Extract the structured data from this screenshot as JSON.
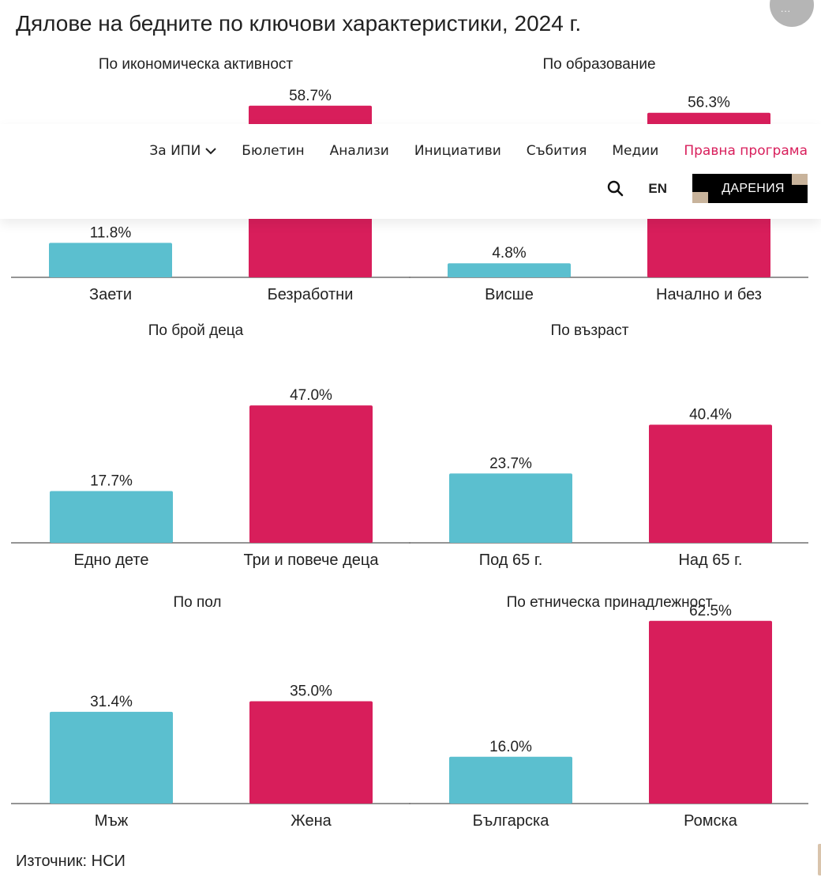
{
  "title": "Дялове на бедните по ключови характеристики, 2024 г.",
  "corner_badge": "...",
  "source": "Източник: НСИ",
  "colors": {
    "low": "#5bbfcf",
    "high": "#d81e5b",
    "accent": "#d81e5b",
    "axis": "#555555"
  },
  "chart_data": [
    {
      "type": "bar",
      "title": "По икономическа активност",
      "categories": [
        "Заети",
        "Безработни"
      ],
      "values": [
        11.8,
        58.7
      ],
      "labels": [
        "11.8%",
        "58.7%"
      ],
      "ylim": [
        0,
        65
      ]
    },
    {
      "type": "bar",
      "title": "По образование",
      "categories": [
        "Висше",
        "Начално и без"
      ],
      "values": [
        4.8,
        56.3
      ],
      "labels": [
        "4.8%",
        "56.3%"
      ],
      "ylim": [
        0,
        65
      ]
    },
    {
      "type": "bar",
      "title": "По брой деца",
      "categories": [
        "Едно дете",
        "Три и повече деца"
      ],
      "values": [
        17.7,
        47.0
      ],
      "labels": [
        "17.7%",
        "47.0%"
      ],
      "ylim": [
        0,
        65
      ]
    },
    {
      "type": "bar",
      "title": "По възраст",
      "categories": [
        "Под 65 г.",
        "Над 65 г."
      ],
      "values": [
        23.7,
        40.4
      ],
      "labels": [
        "23.7%",
        "40.4%"
      ],
      "ylim": [
        0,
        65
      ]
    },
    {
      "type": "bar",
      "title": "По пол",
      "categories": [
        "Мъж",
        "Жена"
      ],
      "values": [
        31.4,
        35.0
      ],
      "labels": [
        "31.4%",
        "35.0%"
      ],
      "ylim": [
        0,
        65
      ]
    },
    {
      "type": "bar",
      "title": "По етническа принадлежност",
      "categories": [
        "Българска",
        "Ромска"
      ],
      "values": [
        16.0,
        62.5
      ],
      "labels": [
        "16.0%",
        "62.5%"
      ],
      "ylim": [
        0,
        65
      ]
    }
  ],
  "nav": {
    "items": [
      {
        "label": "За ИПИ",
        "dropdown": true
      },
      {
        "label": "Бюлетин"
      },
      {
        "label": "Анализи"
      },
      {
        "label": "Инициативи"
      },
      {
        "label": "Събития"
      },
      {
        "label": "Медии"
      },
      {
        "label": "Правна програма",
        "active": true
      }
    ],
    "search_icon": "search-icon",
    "lang": "EN",
    "donate": "ДАРЕНИЯ"
  }
}
